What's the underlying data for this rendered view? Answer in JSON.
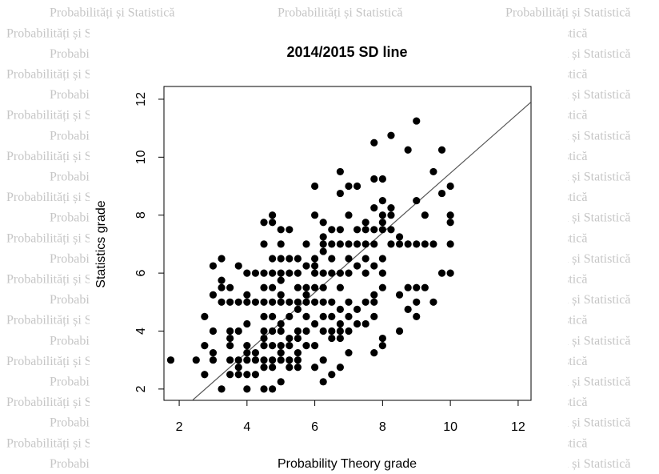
{
  "watermark": "Probabilități și Statistică",
  "chart_data": {
    "type": "scatter",
    "title": "2014/2015 SD line",
    "x_label": "Probability Theory grade",
    "y_label": "Statistics grade",
    "xlim": [
      1.55,
      12.38
    ],
    "ylim": [
      1.61,
      12.44
    ],
    "xticks": [
      2,
      4,
      6,
      8,
      10,
      12
    ],
    "yticks": [
      2,
      4,
      6,
      8,
      10,
      12
    ],
    "sd_line": {
      "slope": 1.03,
      "intercept": -0.85,
      "color": "#555555"
    },
    "series": [
      {
        "color": "#000000",
        "x": [
          1.75,
          2.5,
          2.75,
          2.75,
          2.75,
          3,
          3,
          3,
          3,
          3,
          3.25,
          3.25,
          3.25,
          3.25,
          3.25,
          3.5,
          3.5,
          3.5,
          3.5,
          3.5,
          3.5,
          3.5,
          3.75,
          3.75,
          3.75,
          3.75,
          3.75,
          3.75,
          4,
          4,
          4,
          4,
          4,
          4,
          4,
          4,
          4,
          4.25,
          4.25,
          4.25,
          4.25,
          4.25,
          4.5,
          4.5,
          4.5,
          4.5,
          4.5,
          4.5,
          4.5,
          4.5,
          4.5,
          4.5,
          4.5,
          4.5,
          4.75,
          4.75,
          4.75,
          4.75,
          4.75,
          4.75,
          4.75,
          4.75,
          4.75,
          4.75,
          4.75,
          4.75,
          5,
          5,
          5,
          5,
          5,
          5,
          5,
          5,
          5,
          5,
          5,
          5,
          5,
          5.25,
          5.25,
          5.25,
          5.25,
          5.25,
          5.25,
          5.25,
          5.25,
          5.25,
          5.5,
          5.5,
          5.5,
          5.5,
          5.5,
          5.5,
          5.5,
          5.5,
          5.5,
          5.5,
          5.75,
          5.75,
          5.75,
          5.75,
          5.75,
          5.75,
          5.75,
          5.75,
          6,
          6,
          6,
          6,
          6,
          6,
          6,
          6,
          6,
          6,
          6.25,
          6.25,
          6.25,
          6.25,
          6.25,
          6.25,
          6.25,
          6.25,
          6.25,
          6.25,
          6.25,
          6.5,
          6.5,
          6.5,
          6.5,
          6.5,
          6.5,
          6.5,
          6.5,
          6.5,
          6.75,
          6.75,
          6.75,
          6.75,
          6.75,
          6.75,
          6.75,
          6.75,
          6.75,
          6.75,
          6.75,
          7,
          7,
          7,
          7,
          7,
          7,
          7,
          7,
          7,
          7.25,
          7.25,
          7.25,
          7.25,
          7.25,
          7.25,
          7.5,
          7.5,
          7.5,
          7.5,
          7.5,
          7.5,
          7.5,
          7.75,
          7.75,
          7.75,
          7.75,
          7.75,
          7.75,
          7.75,
          7.75,
          7.75,
          7.75,
          8,
          8,
          8,
          8,
          8,
          8,
          8,
          8,
          8,
          8,
          8.25,
          8.25,
          8.25,
          8.25,
          8.25,
          8.5,
          8.5,
          8.5,
          8.5,
          8.75,
          8.75,
          8.75,
          8.75,
          9,
          9,
          9,
          9,
          9,
          9,
          9.25,
          9.25,
          9.25,
          9.5,
          9.5,
          9.5,
          9.75,
          9.75,
          9.75,
          10,
          10,
          10,
          10,
          10
        ],
        "values": [
          3,
          3,
          2.5,
          3.5,
          4.5,
          3,
          3.25,
          4,
          5.25,
          6.25,
          2,
          5,
          5.5,
          5.75,
          6.5,
          2.5,
          3,
          3.5,
          3.75,
          4,
          5,
          5.5,
          2.5,
          2.75,
          3,
          4,
          5,
          6.25,
          2,
          2.5,
          3,
          3.25,
          3.5,
          4.25,
          5,
          5.25,
          6,
          2.5,
          3,
          3.25,
          5,
          6,
          2,
          2.75,
          3,
          3.5,
          3.75,
          4,
          4.5,
          5,
          5.5,
          6,
          7,
          7.75,
          2,
          2.75,
          3,
          3.5,
          4,
          4.5,
          5,
          5.5,
          6,
          6.5,
          7.75,
          8,
          2.25,
          3,
          3.25,
          3.5,
          4,
          4.25,
          5,
          5.25,
          5.75,
          6,
          6.5,
          7,
          7.5,
          2.75,
          3,
          3.5,
          3.75,
          4.5,
          5,
          6,
          6.5,
          7.5,
          2.75,
          3,
          3.25,
          3.75,
          4,
          4.75,
          5,
          5.5,
          6,
          6.5,
          3.5,
          4,
          4.5,
          5,
          5.25,
          5.5,
          6.25,
          7,
          2.75,
          3.5,
          4.25,
          5,
          5.5,
          6,
          6.25,
          6.5,
          8,
          9,
          2.25,
          3,
          4,
          4.5,
          5,
          5.5,
          6,
          6.75,
          7,
          7.25,
          7.75,
          2.5,
          3.75,
          4,
          4.5,
          5,
          6,
          6.5,
          7,
          7.5,
          2.75,
          3.75,
          4,
          4.25,
          4.75,
          5.5,
          6,
          7,
          7.5,
          8.75,
          9.5,
          3.25,
          4,
          4.5,
          5,
          6,
          6.5,
          7,
          8,
          9,
          4.25,
          4.75,
          6.25,
          7,
          7.5,
          9,
          4.25,
          5,
          6,
          6.5,
          7,
          7.5,
          7.75,
          3.25,
          4.5,
          5,
          5.25,
          6.25,
          7,
          7.5,
          8.25,
          9.25,
          10.5,
          3.5,
          3.75,
          5.5,
          6,
          6.5,
          7.5,
          7.75,
          8,
          8.5,
          9.25,
          7,
          7.5,
          8,
          8.25,
          10.75,
          4,
          5.25,
          7,
          7.25,
          4.75,
          5.5,
          7,
          10.25,
          4.5,
          5,
          5.5,
          7,
          8.5,
          11.25,
          5.5,
          7,
          8,
          5,
          7,
          9.5,
          6,
          8.75,
          10.25,
          6,
          7,
          7.75,
          8,
          9
        ]
      }
    ]
  }
}
